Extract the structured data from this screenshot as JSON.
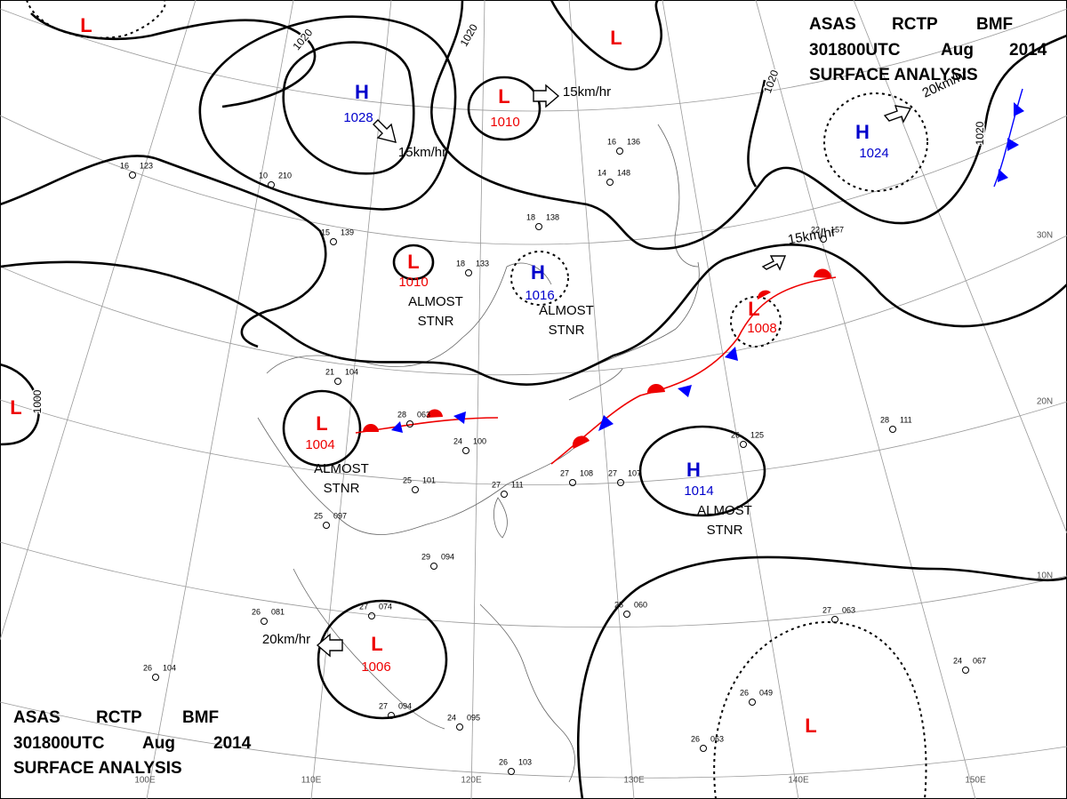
{
  "header": {
    "line1": [
      "ASAS",
      "RCTP",
      "BMF"
    ],
    "line2": [
      "301800UTC",
      "Aug",
      "2014"
    ],
    "line3": "SURFACE ANALYSIS"
  },
  "systems": [
    {
      "type": "H",
      "pressure": 1028
    },
    {
      "type": "L",
      "pressure": 1010
    },
    {
      "type": "L",
      "pressure": 1010
    },
    {
      "type": "H",
      "pressure": 1016
    },
    {
      "type": "L",
      "pressure": 1008
    },
    {
      "type": "L",
      "pressure": 1004
    },
    {
      "type": "H",
      "pressure": 1014
    },
    {
      "type": "L",
      "pressure": 1006
    },
    {
      "type": "H",
      "pressure": 1024
    },
    {
      "type": "L"
    },
    {
      "type": "L"
    },
    {
      "type": "L"
    },
    {
      "type": "L"
    }
  ],
  "notes": [
    [
      "ALMOST",
      "STNR"
    ],
    [
      "ALMOST",
      "STNR"
    ],
    [
      "ALMOST",
      "STNR"
    ],
    [
      "ALMOST",
      "STNR"
    ]
  ],
  "motions": [
    "15km/hr",
    "15km/hr",
    "20km/hr",
    "15km/hr",
    "20km/hr"
  ],
  "isobar_labels": [
    "1020",
    "1020",
    "1020",
    "1020",
    "1000"
  ],
  "grid_labels": [
    "30N",
    "20N",
    "10N",
    "100E",
    "110E",
    "120E",
    "130E",
    "140E",
    "150E"
  ],
  "stations": [
    {
      "t": "18",
      "p": "138"
    },
    {
      "t": "18",
      "p": "133"
    },
    {
      "t": "15",
      "p": "139"
    },
    {
      "t": "21",
      "p": "104"
    },
    {
      "t": "28",
      "p": "063"
    },
    {
      "t": "24",
      "p": "100"
    },
    {
      "t": "25",
      "p": "101"
    },
    {
      "t": "27",
      "p": "111"
    },
    {
      "t": "25",
      "p": "097"
    },
    {
      "t": "29",
      "p": "094"
    },
    {
      "t": "27",
      "p": "074"
    },
    {
      "t": "26",
      "p": "081"
    },
    {
      "t": "26",
      "p": "104"
    },
    {
      "t": "27",
      "p": "094"
    },
    {
      "t": "24",
      "p": "095"
    },
    {
      "t": "26",
      "p": "103"
    },
    {
      "t": "25",
      "p": "060"
    },
    {
      "t": "27",
      "p": "063"
    },
    {
      "t": "24",
      "p": "067"
    },
    {
      "t": "26",
      "p": "049"
    },
    {
      "t": "26",
      "p": "063"
    },
    {
      "t": "28",
      "p": "111"
    },
    {
      "t": "26",
      "p": "125"
    },
    {
      "t": "27",
      "p": "108"
    },
    {
      "t": "27",
      "p": "107"
    },
    {
      "t": "14",
      "p": "148"
    },
    {
      "t": "16",
      "p": "136"
    },
    {
      "t": "10",
      "p": "210"
    },
    {
      "t": "16",
      "p": "123"
    },
    {
      "t": "22",
      "p": "157"
    }
  ]
}
